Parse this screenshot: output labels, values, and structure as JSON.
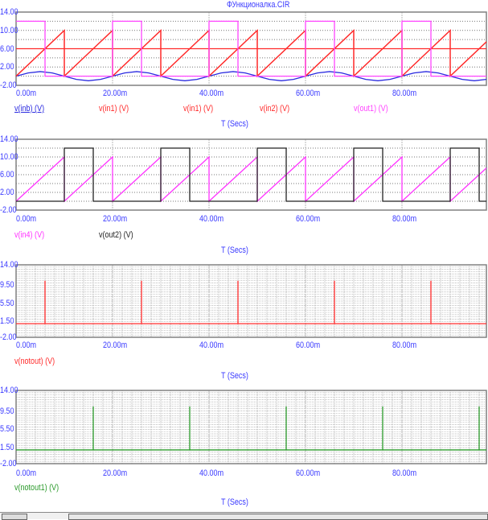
{
  "title": "ФУнкционалка.CIR",
  "colors": {
    "axis_text": "#3a3aff",
    "grid": "#9a9a9a",
    "frame": "#808080"
  },
  "chart_data": [
    {
      "type": "line",
      "xlabel": "T (Secs)",
      "xlim": [
        0,
        97.5
      ],
      "ylim": [
        -2,
        14
      ],
      "xticks": [
        "0.00m",
        "20.00m",
        "40.00m",
        "60.00m",
        "80.00m"
      ],
      "xtick_values": [
        0,
        20,
        40,
        60,
        80
      ],
      "yticks": [
        "14.00",
        "10.00",
        "6.00",
        "2.00",
        "-2.00"
      ],
      "ytick_values": [
        14,
        10,
        6,
        2,
        -2
      ],
      "grid": true,
      "series": [
        {
          "name": "v(inb) (V)",
          "color": "#2a2ae0",
          "underline": true,
          "points": [
            [
              0,
              0
            ],
            [
              2.5,
              0.71
            ],
            [
              5,
              1
            ],
            [
              7.5,
              0.71
            ],
            [
              10,
              0
            ],
            [
              12.5,
              -0.71
            ],
            [
              15,
              -1
            ],
            [
              17.5,
              -0.71
            ],
            [
              20,
              0
            ],
            [
              22.5,
              0.71
            ],
            [
              25,
              1
            ],
            [
              27.5,
              0.71
            ],
            [
              30,
              0
            ],
            [
              32.5,
              -0.71
            ],
            [
              35,
              -1
            ],
            [
              37.5,
              -0.71
            ],
            [
              40,
              0
            ],
            [
              42.5,
              0.71
            ],
            [
              45,
              1
            ],
            [
              47.5,
              0.71
            ],
            [
              50,
              0
            ],
            [
              52.5,
              -0.71
            ],
            [
              55,
              -1
            ],
            [
              57.5,
              -0.71
            ],
            [
              60,
              0
            ],
            [
              62.5,
              0.71
            ],
            [
              65,
              1
            ],
            [
              67.5,
              0.71
            ],
            [
              70,
              0
            ],
            [
              72.5,
              -0.71
            ],
            [
              75,
              -1
            ],
            [
              77.5,
              -0.71
            ],
            [
              80,
              0
            ],
            [
              82.5,
              0.71
            ],
            [
              85,
              1
            ],
            [
              87.5,
              0.71
            ],
            [
              90,
              0
            ],
            [
              92.5,
              -0.71
            ],
            [
              95,
              -1
            ],
            [
              97.5,
              -0.71
            ]
          ]
        },
        {
          "name": "v(in1) (V)",
          "color": "#ff2a2a",
          "points": [
            [
              0,
              0
            ],
            [
              10,
              10
            ],
            [
              10,
              0
            ],
            [
              20,
              10
            ],
            [
              20,
              0
            ],
            [
              30,
              10
            ],
            [
              30,
              0
            ],
            [
              40,
              10
            ],
            [
              40,
              0
            ],
            [
              50,
              10
            ],
            [
              50,
              0
            ],
            [
              60,
              10
            ],
            [
              60,
              0
            ],
            [
              70,
              10
            ],
            [
              70,
              0
            ],
            [
              80,
              10
            ],
            [
              80,
              0
            ],
            [
              90,
              10
            ],
            [
              90,
              0
            ],
            [
              97.5,
              7.5
            ]
          ]
        },
        {
          "name": "v(in1) (V)",
          "color": "#ff2a2a",
          "points": [
            [
              0,
              0
            ],
            [
              10,
              10
            ],
            [
              10,
              0
            ],
            [
              20,
              10
            ],
            [
              20,
              0
            ],
            [
              30,
              10
            ],
            [
              30,
              0
            ],
            [
              40,
              10
            ],
            [
              40,
              0
            ],
            [
              50,
              10
            ],
            [
              50,
              0
            ],
            [
              60,
              10
            ],
            [
              60,
              0
            ],
            [
              70,
              10
            ],
            [
              70,
              0
            ],
            [
              80,
              10
            ],
            [
              80,
              0
            ],
            [
              90,
              10
            ],
            [
              90,
              0
            ],
            [
              97.5,
              7.5
            ]
          ]
        },
        {
          "name": "v(in2) (V)",
          "color": "#ff2a2a",
          "points": [
            [
              0,
              6
            ],
            [
              97.5,
              6
            ]
          ]
        },
        {
          "name": "v(out1) (V)",
          "color": "#ff44ff",
          "points": [
            [
              0,
              12
            ],
            [
              6,
              12
            ],
            [
              6,
              0
            ],
            [
              20,
              0
            ],
            [
              20,
              12
            ],
            [
              26,
              12
            ],
            [
              26,
              0
            ],
            [
              40,
              0
            ],
            [
              40,
              12
            ],
            [
              46,
              12
            ],
            [
              46,
              0
            ],
            [
              60,
              0
            ],
            [
              60,
              12
            ],
            [
              66,
              12
            ],
            [
              66,
              0
            ],
            [
              80,
              0
            ],
            [
              80,
              12
            ],
            [
              86,
              12
            ],
            [
              86,
              0
            ],
            [
              97.5,
              0
            ]
          ]
        }
      ]
    },
    {
      "type": "line",
      "xlabel": "T (Secs)",
      "xlim": [
        0,
        97.5
      ],
      "ylim": [
        -2,
        14
      ],
      "xticks": [
        "0.00m",
        "20.00m",
        "40.00m",
        "60.00m",
        "80.00m"
      ],
      "xtick_values": [
        0,
        20,
        40,
        60,
        80
      ],
      "yticks": [
        "14.00",
        "10.00",
        "6.00",
        "2.00",
        "-2.00"
      ],
      "ytick_values": [
        14,
        10,
        6,
        2,
        -2
      ],
      "grid": true,
      "series": [
        {
          "name": "v(in4) (V)",
          "color": "#ff33ff",
          "points": [
            [
              0,
              0
            ],
            [
              10,
              10
            ],
            [
              10,
              0
            ],
            [
              20,
              10
            ],
            [
              20,
              0
            ],
            [
              30,
              10
            ],
            [
              30,
              0
            ],
            [
              40,
              10
            ],
            [
              40,
              0
            ],
            [
              50,
              10
            ],
            [
              50,
              0
            ],
            [
              60,
              10
            ],
            [
              60,
              0
            ],
            [
              70,
              10
            ],
            [
              70,
              0
            ],
            [
              80,
              10
            ],
            [
              80,
              0
            ],
            [
              90,
              10
            ],
            [
              90,
              0
            ],
            [
              97.5,
              7.5
            ]
          ]
        },
        {
          "name": "v(out2) (V)",
          "color": "#222222",
          "points": [
            [
              0,
              0
            ],
            [
              10,
              0
            ],
            [
              10,
              12
            ],
            [
              16,
              12
            ],
            [
              16,
              0
            ],
            [
              30,
              0
            ],
            [
              30,
              12
            ],
            [
              36,
              12
            ],
            [
              36,
              0
            ],
            [
              50,
              0
            ],
            [
              50,
              12
            ],
            [
              56,
              12
            ],
            [
              56,
              0
            ],
            [
              70,
              0
            ],
            [
              70,
              12
            ],
            [
              76,
              12
            ],
            [
              76,
              0
            ],
            [
              90,
              0
            ],
            [
              90,
              12
            ],
            [
              96,
              12
            ],
            [
              96,
              0
            ],
            [
              97.5,
              0
            ]
          ]
        }
      ]
    },
    {
      "type": "line",
      "xlabel": "T (Secs)",
      "xlim": [
        0,
        97.5
      ],
      "ylim": [
        -2,
        14
      ],
      "xticks": [
        "0.00m",
        "20.00m",
        "40.00m",
        "60.00m",
        "80.00m"
      ],
      "xtick_values": [
        0,
        20,
        40,
        60,
        80
      ],
      "yticks": [
        "14.00",
        "9.50",
        "5.50",
        "1.50",
        "-2.00"
      ],
      "ytick_values": [
        14,
        9.5,
        5.5,
        1.5,
        -2
      ],
      "grid": true,
      "dense_grid": true,
      "series": [
        {
          "name": "v(notout) (V)",
          "color": "#ff2a2a",
          "points": [
            [
              0,
              1
            ],
            [
              6,
              1
            ],
            [
              6,
              10.5
            ],
            [
              6,
              1
            ],
            [
              26,
              1
            ],
            [
              26,
              10.5
            ],
            [
              26,
              1
            ],
            [
              46,
              1
            ],
            [
              46,
              10.5
            ],
            [
              46,
              1
            ],
            [
              66,
              1
            ],
            [
              66,
              10.5
            ],
            [
              66,
              1
            ],
            [
              86,
              1
            ],
            [
              86,
              10.5
            ],
            [
              86,
              1
            ],
            [
              97.5,
              1
            ]
          ]
        }
      ]
    },
    {
      "type": "line",
      "xlabel": "T (Secs)",
      "xlim": [
        0,
        97.5
      ],
      "ylim": [
        -2,
        14
      ],
      "xticks": [
        "0.00m",
        "20.00m",
        "40.00m",
        "60.00m",
        "80.00m"
      ],
      "xtick_values": [
        0,
        20,
        40,
        60,
        80
      ],
      "yticks": [
        "14.00",
        "9.50",
        "5.50",
        "1.50",
        "-2.00"
      ],
      "ytick_values": [
        14,
        9.5,
        5.5,
        1.5,
        -2
      ],
      "grid": true,
      "dense_grid": true,
      "series": [
        {
          "name": "v(notout1) (V)",
          "color": "#2a9a2a",
          "points": [
            [
              0,
              1
            ],
            [
              16,
              1
            ],
            [
              16,
              10.5
            ],
            [
              16,
              1
            ],
            [
              36,
              1
            ],
            [
              36,
              10.5
            ],
            [
              36,
              1
            ],
            [
              56,
              1
            ],
            [
              56,
              10.5
            ],
            [
              56,
              1
            ],
            [
              76,
              1
            ],
            [
              76,
              10.5
            ],
            [
              76,
              1
            ],
            [
              96,
              1
            ],
            [
              96,
              10.5
            ],
            [
              96,
              1
            ],
            [
              97.5,
              1
            ]
          ]
        }
      ]
    }
  ]
}
